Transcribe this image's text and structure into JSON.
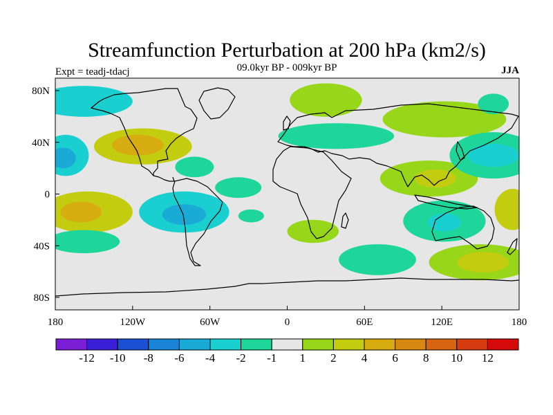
{
  "chart_data": {
    "type": "heatmap",
    "title": "Streamfunction Perturbation at 200 hPa (km2/s)",
    "left_label": "Expt = teadj-tdacj",
    "center_label": "09.0kyr BP - 009kyr BP",
    "right_label": "JJA",
    "x_ticks": [
      "180",
      "120W",
      "60W",
      "0",
      "60E",
      "120E",
      "180"
    ],
    "y_ticks": [
      "80N",
      "40N",
      "0",
      "40S",
      "80S"
    ],
    "xlim": [
      -180,
      180
    ],
    "ylim": [
      -90,
      90
    ],
    "background_color": "#e6e6e6",
    "colorbar": {
      "colors": [
        "#7a1fd6",
        "#3b1fd6",
        "#1a4fd6",
        "#1a84d6",
        "#1aaad6",
        "#1acfcf",
        "#1fd69a",
        "#e6e6e6",
        "#98d61a",
        "#c4cc10",
        "#d6ac10",
        "#d68810",
        "#d66410",
        "#d63c10",
        "#d60a0a"
      ],
      "levels": [
        "-12",
        "-10",
        "-8",
        "-6",
        "-4",
        "-2",
        "-1",
        "1",
        "2",
        "4",
        "6",
        "8",
        "10",
        "12"
      ]
    },
    "features": [
      {
        "lon": -158,
        "lat": 72,
        "rx": 38,
        "ry": 12,
        "level": 2,
        "sign": "neg"
      },
      {
        "lon": -172,
        "lat": 30,
        "rx": 18,
        "ry": 16,
        "level": 2,
        "sign": "neg"
      },
      {
        "lon": -174,
        "lat": 28,
        "rx": 10,
        "ry": 8,
        "level": 3,
        "sign": "neg"
      },
      {
        "lon": -112,
        "lat": 37,
        "rx": 38,
        "ry": 14,
        "level": 2,
        "sign": "pos"
      },
      {
        "lon": -116,
        "lat": 38,
        "rx": 20,
        "ry": 8,
        "level": 3,
        "sign": "pos"
      },
      {
        "lon": -72,
        "lat": 21,
        "rx": 15,
        "ry": 8,
        "level": 1,
        "sign": "neg"
      },
      {
        "lon": -155,
        "lat": -14,
        "rx": 35,
        "ry": 16,
        "level": 2,
        "sign": "pos"
      },
      {
        "lon": -160,
        "lat": -14,
        "rx": 16,
        "ry": 8,
        "level": 3,
        "sign": "pos"
      },
      {
        "lon": -80,
        "lat": -14,
        "rx": 35,
        "ry": 16,
        "level": 2,
        "sign": "neg"
      },
      {
        "lon": -80,
        "lat": -16,
        "rx": 17,
        "ry": 8,
        "level": 3,
        "sign": "neg"
      },
      {
        "lon": -38,
        "lat": 5,
        "rx": 18,
        "ry": 8,
        "level": 1,
        "sign": "neg"
      },
      {
        "lon": -28,
        "lat": -17,
        "rx": 10,
        "ry": 5,
        "level": 1,
        "sign": "neg"
      },
      {
        "lon": -158,
        "lat": -37,
        "rx": 28,
        "ry": 9,
        "level": 1,
        "sign": "neg"
      },
      {
        "lon": 30,
        "lat": 73,
        "rx": 28,
        "ry": 13,
        "level": 1,
        "sign": "pos"
      },
      {
        "lon": 38,
        "lat": 45,
        "rx": 45,
        "ry": 10,
        "level": 1,
        "sign": "neg"
      },
      {
        "lon": 122,
        "lat": 58,
        "rx": 48,
        "ry": 14,
        "level": 1,
        "sign": "pos"
      },
      {
        "lon": 160,
        "lat": 70,
        "rx": 12,
        "ry": 8,
        "level": 1,
        "sign": "neg"
      },
      {
        "lon": 110,
        "lat": 12,
        "rx": 38,
        "ry": 14,
        "level": 1,
        "sign": "pos"
      },
      {
        "lon": 115,
        "lat": 12,
        "rx": 16,
        "ry": 7,
        "level": 2,
        "sign": "pos"
      },
      {
        "lon": 160,
        "lat": 30,
        "rx": 34,
        "ry": 18,
        "level": 1,
        "sign": "neg"
      },
      {
        "lon": 160,
        "lat": 30,
        "rx": 20,
        "ry": 9,
        "level": 2,
        "sign": "neg"
      },
      {
        "lon": 122,
        "lat": -21,
        "rx": 32,
        "ry": 16,
        "level": 1,
        "sign": "neg"
      },
      {
        "lon": 122,
        "lat": -22,
        "rx": 13,
        "ry": 7,
        "level": 2,
        "sign": "neg"
      },
      {
        "lon": 175,
        "lat": -12,
        "rx": 14,
        "ry": 16,
        "level": 2,
        "sign": "pos"
      },
      {
        "lon": 20,
        "lat": -29,
        "rx": 20,
        "ry": 9,
        "level": 1,
        "sign": "pos"
      },
      {
        "lon": 70,
        "lat": -51,
        "rx": 30,
        "ry": 12,
        "level": 1,
        "sign": "neg"
      },
      {
        "lon": 150,
        "lat": -53,
        "rx": 40,
        "ry": 14,
        "level": 1,
        "sign": "pos"
      },
      {
        "lon": 152,
        "lat": -53,
        "rx": 20,
        "ry": 8,
        "level": 2,
        "sign": "pos"
      }
    ]
  }
}
